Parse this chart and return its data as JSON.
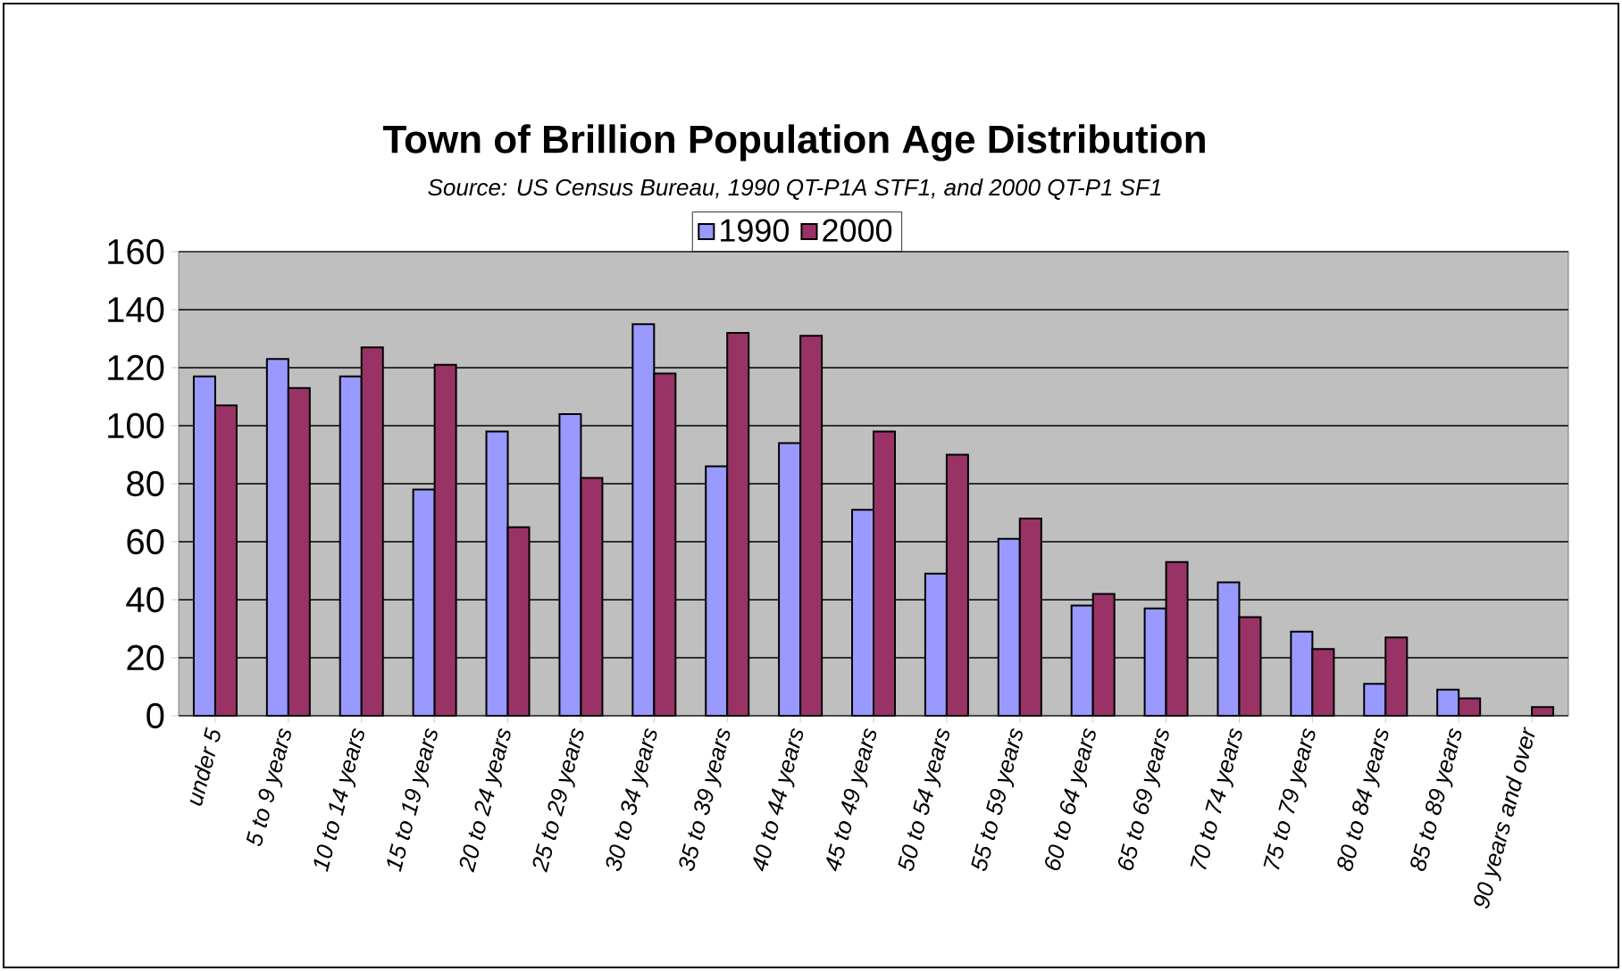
{
  "chart_data": {
    "type": "bar",
    "title": "Town of Brillion Population Age Distribution",
    "subtitle": "Source:  US Census Bureau, 1990 QT-P1A STF1, and 2000 QT-P1 SF1",
    "categories": [
      "under 5",
      "5 to 9 years",
      "10 to 14 years",
      "15 to 19 years",
      "20 to 24 years",
      "25 to 29 years",
      "30 to 34 years",
      "35 to 39 years",
      "40 to 44 years",
      "45 to 49 years",
      "50 to 54 years",
      "55 to 59 years",
      "60 to 64 years",
      "65 to 69 years",
      "70 to 74 years",
      "75 to 79 years",
      "80 to 84 years",
      "85 to 89 years",
      "90 years and over"
    ],
    "series": [
      {
        "name": "1990",
        "color": "#9999ff",
        "values": [
          117,
          123,
          117,
          78,
          98,
          104,
          135,
          86,
          94,
          71,
          49,
          61,
          38,
          37,
          46,
          29,
          11,
          9,
          null
        ]
      },
      {
        "name": "2000",
        "color": "#993366",
        "values": [
          107,
          113,
          127,
          121,
          65,
          82,
          118,
          132,
          131,
          98,
          90,
          68,
          42,
          53,
          34,
          23,
          27,
          6,
          3
        ]
      }
    ],
    "ylim": [
      0,
      160
    ],
    "yticks": [
      0,
      20,
      40,
      60,
      80,
      100,
      120,
      140,
      160
    ],
    "grid": "y",
    "legend": "top"
  }
}
